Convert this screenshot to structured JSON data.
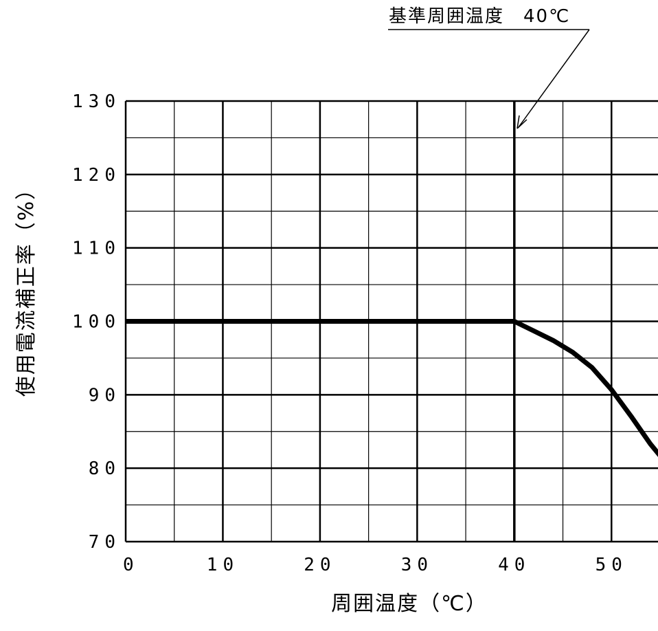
{
  "chart_data": {
    "type": "line",
    "xlabel": "周囲温度（℃）",
    "ylabel": "使用電流補正率（%）",
    "xlim": [
      0,
      55
    ],
    "ylim": [
      70,
      130
    ],
    "x_ticks": [
      "0",
      "10",
      "20",
      "30",
      "40",
      "50"
    ],
    "y_ticks": [
      "70",
      "80",
      "90",
      "100",
      "110",
      "120",
      "130"
    ],
    "grid": true,
    "annotation": {
      "text": "基準周囲温度　40℃",
      "points_to_x": 40
    },
    "series": [
      {
        "x": [
          0,
          40,
          42,
          44,
          46,
          48,
          50,
          52,
          54,
          55
        ],
        "y": [
          100,
          100,
          98.7,
          97.4,
          95.8,
          93.7,
          90.7,
          87.1,
          83.3,
          81.7
        ]
      }
    ],
    "colors": {
      "line": "#000000",
      "grid": "#000000",
      "background": "#ffffff"
    }
  }
}
